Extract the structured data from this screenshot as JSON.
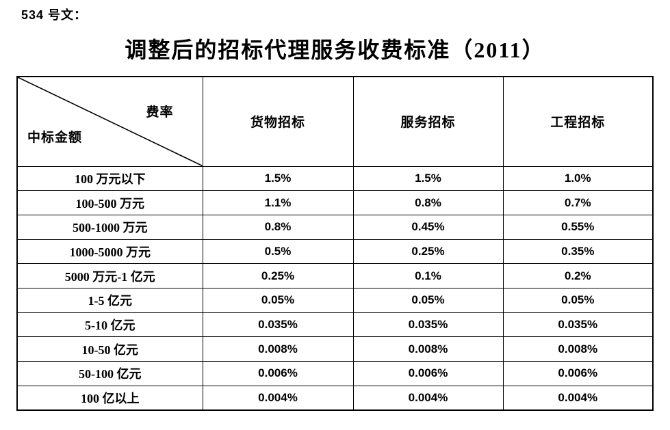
{
  "page": {
    "doc_label": "534 号文：",
    "title": "调整后的招标代理服务收费标准（2011）"
  },
  "table": {
    "corner": {
      "top_right_label": "费率",
      "bottom_left_label": "中标金额"
    },
    "column_headers": [
      "货物招标",
      "服务招标",
      "工程招标"
    ],
    "rows": [
      {
        "label": "100 万元以下",
        "values": [
          "1.5%",
          "1.5%",
          "1.0%"
        ]
      },
      {
        "label": "100-500 万元",
        "values": [
          "1.1%",
          "0.8%",
          "0.7%"
        ]
      },
      {
        "label": "500-1000 万元",
        "values": [
          "0.8%",
          "0.45%",
          "0.55%"
        ]
      },
      {
        "label": "1000-5000 万元",
        "values": [
          "0.5%",
          "0.25%",
          "0.35%"
        ]
      },
      {
        "label": "5000 万元-1 亿元",
        "values": [
          "0.25%",
          "0.1%",
          "0.2%"
        ]
      },
      {
        "label": "1-5 亿元",
        "values": [
          "0.05%",
          "0.05%",
          "0.05%"
        ]
      },
      {
        "label": "5-10 亿元",
        "values": [
          "0.035%",
          "0.035%",
          "0.035%"
        ]
      },
      {
        "label": "10-50 亿元",
        "values": [
          "0.008%",
          "0.008%",
          "0.008%"
        ]
      },
      {
        "label": "50-100 亿元",
        "values": [
          "0.006%",
          "0.006%",
          "0.006%"
        ]
      },
      {
        "label": "100 亿以上",
        "values": [
          "0.004%",
          "0.004%",
          "0.004%"
        ]
      }
    ]
  },
  "colors": {
    "text": "#000000",
    "border": "#000000",
    "background": "#ffffff"
  }
}
